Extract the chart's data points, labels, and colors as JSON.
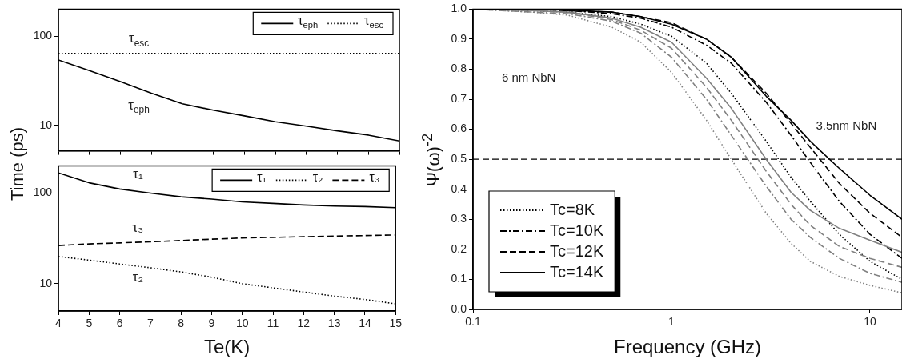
{
  "chart_data": [
    {
      "type": "line",
      "ylabel": "Time (ps)",
      "log": "y",
      "xlim": [
        4,
        15
      ],
      "xticks": [
        4,
        5,
        6,
        7,
        8,
        9,
        10,
        11,
        12,
        13,
        14,
        15
      ],
      "ylim": [
        5.2,
        200
      ],
      "yticks": [
        10,
        100
      ],
      "tick_labels": "y",
      "legend": "top right",
      "x": [
        4,
        5,
        6,
        7,
        8,
        9,
        10,
        11,
        12,
        13,
        14,
        15
      ],
      "series": [
        {
          "name": "τ$_{eph}$",
          "color": "#000000",
          "line_style": "solid",
          "values": [
            54,
            41,
            31,
            23,
            17.5,
            14.8,
            12.8,
            11,
            9.8,
            8.7,
            7.8,
            6.7
          ]
        },
        {
          "name": "τ$_{esc}$",
          "color": "#000000",
          "line_style": "dotted",
          "values": [
            64,
            64,
            64,
            64,
            64,
            64,
            64,
            64,
            64,
            64,
            64,
            64
          ]
        }
      ],
      "annotations": [
        "τ$_{esc}$",
        "τ$_{eph}$"
      ]
    },
    {
      "type": "line",
      "xlabel": "Te(K)",
      "log": "y",
      "xlim": [
        4,
        15
      ],
      "xticks": [
        4,
        5,
        6,
        7,
        8,
        9,
        10,
        11,
        12,
        13,
        14,
        15
      ],
      "ylim": [
        5,
        200
      ],
      "yticks": [
        10,
        100
      ],
      "legend": "top right",
      "x": [
        4,
        5,
        6,
        7,
        8,
        9,
        10,
        11,
        12,
        13,
        14,
        15
      ],
      "series": [
        {
          "name": "τ₁",
          "color": "#000000",
          "line_style": "solid",
          "values": [
            167,
            130,
            111,
            100,
            91,
            86,
            80,
            77,
            74,
            72,
            71,
            69
          ]
        },
        {
          "name": "τ₂",
          "color": "#000000",
          "line_style": "dotted",
          "values": [
            20,
            18.2,
            16.5,
            15,
            13.5,
            11.8,
            10,
            9,
            8.1,
            7.3,
            6.7,
            6
          ]
        },
        {
          "name": "τ₃",
          "color": "#000000",
          "line_style": "dashed",
          "values": [
            26.4,
            27.5,
            28.2,
            29,
            30,
            31,
            32,
            32.5,
            33,
            33.5,
            34,
            34.5
          ]
        }
      ],
      "annotations": [
        "τ₁",
        "τ₃",
        "τ₂"
      ]
    },
    {
      "type": "line",
      "xlabel": "Frequency (GHz)",
      "ylabel": "Ψ(ω)$^{-2}$",
      "log": "x",
      "xlim": [
        0.1,
        14.5
      ],
      "xticks": [
        0.1,
        1,
        10
      ],
      "ylim": [
        0,
        1
      ],
      "yticks": [
        {
          "value": 0,
          "label": "0.0"
        },
        0.1,
        0.2,
        0.3,
        0.4,
        0.5,
        0.6,
        0.7,
        0.8,
        0.9,
        {
          "value": 1,
          "label": "1.0"
        }
      ],
      "legend": "bottom left",
      "x": [
        0.1,
        0.2,
        0.3,
        0.5,
        0.7,
        1,
        1.5,
        2,
        3,
        4,
        5,
        7,
        10,
        14.5
      ],
      "series": [
        {
          "color": "#808080",
          "line_style": "dotted",
          "values": [
            1,
            0.99,
            0.98,
            0.94,
            0.89,
            0.79,
            0.63,
            0.5,
            0.32,
            0.22,
            0.16,
            0.11,
            0.08,
            0.055
          ]
        },
        {
          "color": "#808080",
          "line_style": "dashdot",
          "values": [
            1,
            0.99,
            0.985,
            0.96,
            0.92,
            0.84,
            0.7,
            0.58,
            0.41,
            0.3,
            0.24,
            0.17,
            0.12,
            0.09
          ]
        },
        {
          "color": "#808080",
          "line_style": "dashed",
          "values": [
            1,
            0.995,
            0.99,
            0.965,
            0.93,
            0.87,
            0.74,
            0.63,
            0.46,
            0.35,
            0.28,
            0.21,
            0.17,
            0.14
          ]
        },
        {
          "color": "#808080",
          "line_style": "solid",
          "values": [
            1,
            0.995,
            0.99,
            0.97,
            0.94,
            0.89,
            0.77,
            0.67,
            0.5,
            0.39,
            0.33,
            0.27,
            0.23,
            0.19
          ]
        },
        {
          "name": "Tc=8K",
          "color": "#000000",
          "line_style": "dotted",
          "values": [
            1,
            0.995,
            0.99,
            0.975,
            0.95,
            0.91,
            0.82,
            0.72,
            0.56,
            0.44,
            0.36,
            0.25,
            0.16,
            0.1
          ]
        },
        {
          "name": "Tc=10K",
          "color": "#000000",
          "line_style": "dashdot",
          "values": [
            1,
            1,
            0.995,
            0.985,
            0.97,
            0.94,
            0.88,
            0.82,
            0.69,
            0.58,
            0.49,
            0.36,
            0.25,
            0.17
          ]
        },
        {
          "name": "Tc=12K",
          "color": "#000000",
          "line_style": "dashed",
          "values": [
            1,
            1,
            0.995,
            0.99,
            0.975,
            0.955,
            0.9,
            0.84,
            0.72,
            0.62,
            0.54,
            0.42,
            0.32,
            0.24
          ]
        },
        {
          "name": "Tc=14K",
          "color": "#000000",
          "line_style": "solid",
          "values": [
            1,
            1,
            0.997,
            0.99,
            0.975,
            0.95,
            0.9,
            0.84,
            0.71,
            0.63,
            0.56,
            0.47,
            0.38,
            0.3
          ]
        }
      ],
      "ref_lines": [
        {
          "axis": "y",
          "value": 0.5,
          "line_style": "dashed"
        }
      ],
      "annotations": [
        "6 nm NbN",
        "3.5nm NbN"
      ]
    }
  ]
}
